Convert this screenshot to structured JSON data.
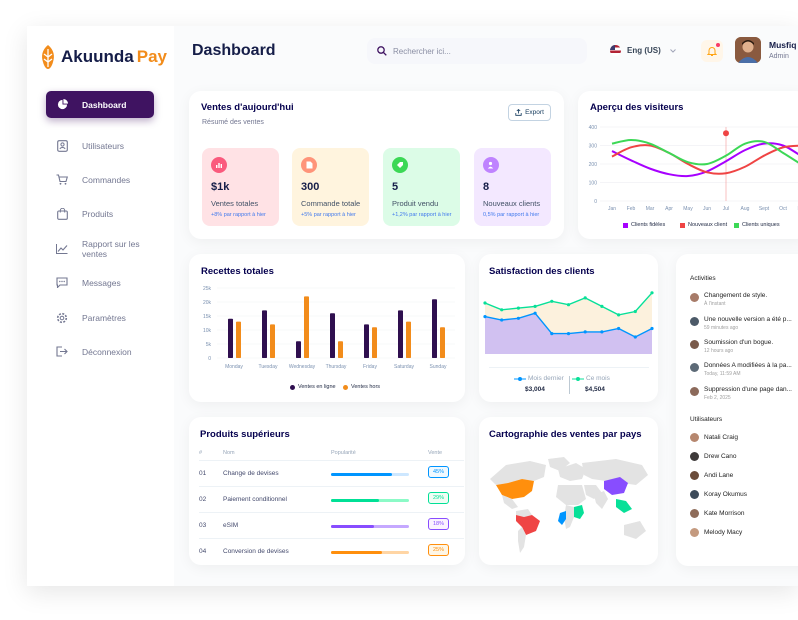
{
  "brand": {
    "name_a": "Akuunda",
    "name_b": "Pay",
    "accent": "#3f1361",
    "orange": "#f28c1b"
  },
  "sidebar": {
    "items": [
      {
        "label": "Dashboard",
        "icon": "pie-chart-icon",
        "active": true
      },
      {
        "label": "Utilisateurs",
        "icon": "user-card-icon"
      },
      {
        "label": "Commandes",
        "icon": "cart-icon"
      },
      {
        "label": "Produits",
        "icon": "shopping-bag-icon"
      },
      {
        "label": "Rapport sur les ventes",
        "icon": "line-chart-icon"
      },
      {
        "label": "Messages",
        "icon": "message-icon"
      },
      {
        "label": "Paramètres",
        "icon": "gear-icon"
      },
      {
        "label": "Déconnexion",
        "icon": "logout-icon"
      }
    ]
  },
  "header": {
    "title": "Dashboard",
    "search_placeholder": "Rechercher ici...",
    "language": "Eng (US)",
    "user_name": "Musfiq",
    "user_role": "Admin"
  },
  "sales_today": {
    "title": "Ventes d'aujourd'hui",
    "subtitle": "Résumé des ventes",
    "export_label": "Export",
    "stats": [
      {
        "value": "$1k",
        "label": "Ventes totales",
        "change": "+8% par rapport à hier",
        "bg": "#ffe2e5",
        "icon_bg": "#fa5a7d",
        "icon": "bar-chart-icon"
      },
      {
        "value": "300",
        "label": "Commande totale",
        "change": "+5% par rapport à hier",
        "bg": "#fff4de",
        "icon_bg": "#ff947a",
        "icon": "document-icon"
      },
      {
        "value": "5",
        "label": "Produit vendu",
        "change": "+1,2% par rapport à hier",
        "bg": "#dcfce7",
        "icon_bg": "#3cd856",
        "icon": "tag-icon"
      },
      {
        "value": "8",
        "label": "Nouveaux clients",
        "change": "0,5% par rapport à hier",
        "bg": "#f3e8ff",
        "icon_bg": "#bf83ff",
        "icon": "add-user-icon"
      }
    ]
  },
  "visitors": {
    "title": "Aperçu des visiteurs"
  },
  "revenue": {
    "title": "Recettes totales"
  },
  "satisfaction": {
    "title": "Satisfaction des clients"
  },
  "top_products": {
    "title": "Produits supérieurs",
    "headers": [
      "#",
      "Nom",
      "Popularité",
      "Vente"
    ],
    "rows": [
      {
        "num": "01",
        "name": "Change de devises",
        "popularity": 0.78,
        "pct": "45%",
        "color": "#0095ff",
        "track": "#cde7ff",
        "pct_bg": "#f0f9ff"
      },
      {
        "num": "02",
        "name": "Paiement conditionnel",
        "popularity": 0.62,
        "pct": "29%",
        "color": "#00e096",
        "track": "#8cfac7",
        "pct_bg": "#f0fdf4"
      },
      {
        "num": "03",
        "name": "eSIM",
        "popularity": 0.55,
        "pct": "18%",
        "color": "#884dff",
        "track": "#c5a8ff",
        "pct_bg": "#fbf1ff"
      },
      {
        "num": "04",
        "name": "Conversion de devises",
        "popularity": 0.65,
        "pct": "25%",
        "color": "#ff8f0d",
        "track": "#ffd5a4",
        "pct_bg": "#fef6e6"
      }
    ]
  },
  "map": {
    "title": "Cartographie des ventes par pays"
  },
  "activities": {
    "title": "Activities",
    "items": [
      {
        "text": "Changement de style.",
        "time": "À l'instant",
        "color": "#a77b69"
      },
      {
        "text": "Une nouvelle version a été p...",
        "time": "59 minutes ago",
        "color": "#4c5a68"
      },
      {
        "text": "Soumission d'un bogue.",
        "time": "12 hours ago",
        "color": "#7a5b4b"
      },
      {
        "text": "Données A modifiées à la pa...",
        "time": "Today, 11:59 AM",
        "color": "#5d6a77"
      },
      {
        "text": "Suppression d'une page dan...",
        "time": "Feb 2, 2025",
        "color": "#8c6a5b"
      }
    ],
    "users_title": "Utilisateurs",
    "users": [
      {
        "name": "Natali Craig",
        "color": "#b6876f"
      },
      {
        "name": "Drew Cano",
        "color": "#3e3a3a"
      },
      {
        "name": "Andi Lane",
        "color": "#6b4c3b"
      },
      {
        "name": "Koray Okumus",
        "color": "#3d4b5a"
      },
      {
        "name": "Kate Morrison",
        "color": "#8e6c5a"
      },
      {
        "name": "Melody Macy",
        "color": "#c49a7f"
      }
    ]
  },
  "chart_data": [
    {
      "type": "line",
      "title": "Aperçu des visiteurs",
      "x": [
        "Jan",
        "Feb",
        "Mar",
        "Apr",
        "May",
        "Jun",
        "Jul",
        "Aug",
        "Sept",
        "Oct",
        "Nov"
      ],
      "ylim": [
        0,
        400
      ],
      "yticks": [
        0,
        100,
        200,
        300,
        400
      ],
      "legend": "bottom",
      "series": [
        {
          "name": "Clients fidèles",
          "color": "#a700ff",
          "values": [
            270,
            220,
            175,
            145,
            135,
            160,
            215,
            275,
            310,
            300,
            240
          ]
        },
        {
          "name": "Nouveaux client",
          "color": "#ef4444",
          "values": [
            240,
            290,
            300,
            260,
            200,
            155,
            150,
            185,
            245,
            290,
            300
          ]
        },
        {
          "name": "Clients uniques",
          "color": "#3cd856",
          "values": [
            310,
            330,
            310,
            260,
            210,
            200,
            245,
            310,
            320,
            260,
            195
          ]
        }
      ]
    },
    {
      "type": "bar",
      "title": "Recettes totales",
      "categories": [
        "Monday",
        "Tuesday",
        "Wednesday",
        "Thursday",
        "Friday",
        "Saturday",
        "Sunday"
      ],
      "ylim": [
        0,
        25
      ],
      "ytick_labels": [
        "25k",
        "20k",
        "15k",
        "10k",
        "5k",
        "0"
      ],
      "legend": "bottom",
      "series": [
        {
          "name": "Ventes en ligne",
          "color": "#2f0f4f",
          "values": [
            14,
            17,
            6,
            16,
            12,
            17,
            21
          ]
        },
        {
          "name": "Ventes hors",
          "color": "#f28c1b",
          "values": [
            13,
            12,
            22,
            6,
            11,
            13,
            11
          ]
        }
      ]
    },
    {
      "type": "area",
      "title": "Satisfaction des clients",
      "legend": "bottom",
      "series": [
        {
          "name": "Mois dernier",
          "total": "$3,004",
          "color": "#0095ff",
          "values": [
            2.2,
            2.0,
            2.1,
            2.4,
            1.2,
            1.2,
            1.3,
            1.3,
            1.5,
            1.0,
            1.5
          ]
        },
        {
          "name": "Ce mois",
          "total": "$4,504",
          "color": "#07e098",
          "values": [
            3.0,
            2.6,
            2.7,
            2.8,
            3.1,
            2.9,
            3.3,
            2.8,
            2.3,
            2.5,
            3.6
          ]
        }
      ]
    }
  ]
}
